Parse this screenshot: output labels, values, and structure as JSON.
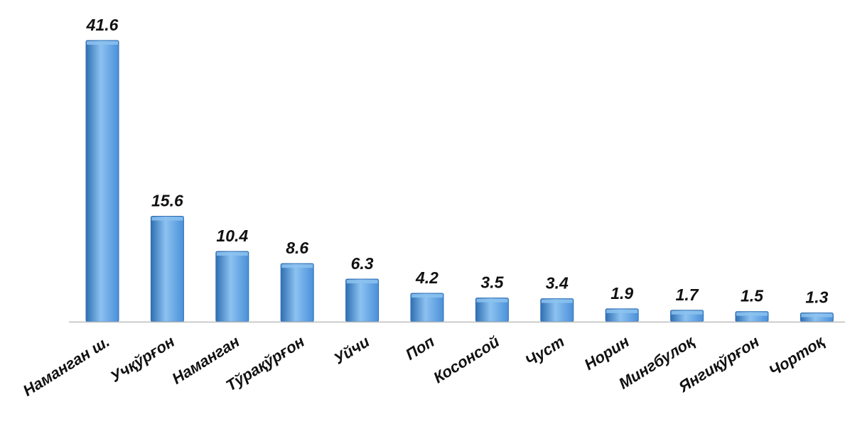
{
  "chart_data": {
    "type": "bar",
    "categories": [
      "Наманган ш.",
      "Учқўрғон",
      "Наманган",
      "Тўрақўрғон",
      "Уйчи",
      "Поп",
      "Косонсой",
      "Чуст",
      "Норин",
      "Мингбулоқ",
      "Янгиқўрғон",
      "Чортоқ"
    ],
    "values": [
      41.6,
      15.6,
      10.4,
      8.6,
      6.3,
      4.2,
      3.5,
      3.4,
      1.9,
      1.7,
      1.5,
      1.3
    ],
    "value_labels": [
      "41.6",
      "15.6",
      "10.4",
      "8.6",
      "6.3",
      "4.2",
      "3.5",
      "3.4",
      "1.9",
      "1.7",
      "1.5",
      "1.3"
    ],
    "title": "",
    "xlabel": "",
    "ylabel": "",
    "ylim": [
      0,
      41.6
    ],
    "grid": false,
    "legend": "none",
    "bar_color": "#4a90d9",
    "bar_color_dark": "#2f6fb3",
    "bar_color_light": "#8cc2f0",
    "axis_color": "#bdbdbd"
  }
}
